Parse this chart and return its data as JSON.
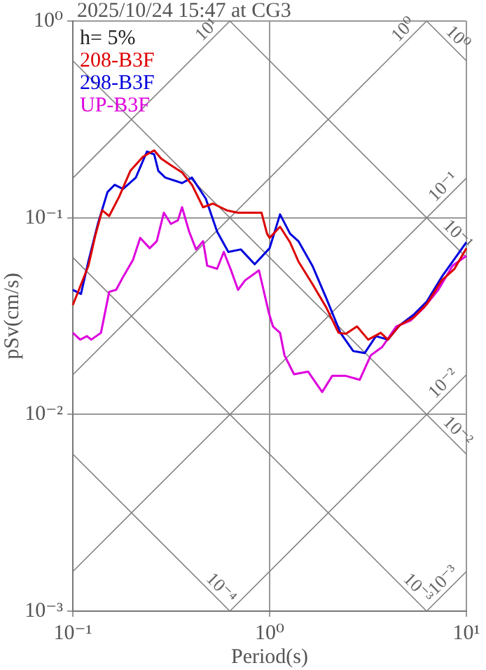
{
  "chart_data": {
    "type": "line",
    "title": "2025/10/24 15:47 at CG3",
    "xlabel": "Period(s)",
    "ylabel": "pSv(cm/s)",
    "log": "xy",
    "xlim": [
      0.1,
      10
    ],
    "ylim": [
      0.001,
      1
    ],
    "xticks": [
      {
        "value": 0.1,
        "label": "10⁻¹"
      },
      {
        "value": 1,
        "label": "10⁰"
      },
      {
        "value": 10,
        "label": "10¹"
      }
    ],
    "yticks": [
      {
        "value": 0.001,
        "label": "10⁻³"
      },
      {
        "value": 0.01,
        "label": "10⁻²"
      },
      {
        "value": 0.1,
        "label": "10⁻¹"
      },
      {
        "value": 1,
        "label": "10⁰"
      }
    ],
    "grid": true,
    "legend": "top left",
    "series": [
      {
        "name": "208-B3F",
        "color": "#dd0000",
        "x": [
          0.1,
          0.12,
          0.13,
          0.141,
          0.153,
          0.172,
          0.196,
          0.227,
          0.259,
          0.281,
          0.315,
          0.359,
          0.403,
          0.459,
          0.515,
          0.606,
          0.691,
          0.774,
          0.91,
          0.97,
          1.0,
          1.13,
          1.27,
          1.4,
          1.65,
          1.94,
          2.24,
          2.44,
          2.78,
          3.17,
          3.67,
          3.99,
          4.58,
          5.37,
          6.29,
          7.49,
          8.7,
          10
        ],
        "values": [
          0.036,
          0.057,
          0.081,
          0.109,
          0.102,
          0.128,
          0.173,
          0.204,
          0.22,
          0.2,
          0.185,
          0.17,
          0.147,
          0.113,
          0.118,
          0.109,
          0.106,
          0.106,
          0.106,
          0.083,
          0.079,
          0.09,
          0.075,
          0.06,
          0.046,
          0.035,
          0.026,
          0.0257,
          0.028,
          0.024,
          0.026,
          0.024,
          0.0284,
          0.031,
          0.0364,
          0.048,
          0.055,
          0.07
        ]
      },
      {
        "name": "298-B3F",
        "color": "#0000dd",
        "x": [
          0.1,
          0.11,
          0.12,
          0.134,
          0.15,
          0.163,
          0.18,
          0.209,
          0.238,
          0.259,
          0.272,
          0.295,
          0.359,
          0.403,
          0.474,
          0.541,
          0.617,
          0.714,
          0.84,
          1.0,
          1.13,
          1.27,
          1.4,
          1.65,
          1.94,
          2.29,
          2.66,
          3.04,
          3.47,
          3.99,
          4.58,
          5.37,
          6.29,
          7.49,
          10
        ],
        "values": [
          0.043,
          0.041,
          0.06,
          0.093,
          0.135,
          0.147,
          0.14,
          0.16,
          0.217,
          0.21,
          0.173,
          0.16,
          0.15,
          0.16,
          0.125,
          0.085,
          0.067,
          0.069,
          0.058,
          0.07,
          0.104,
          0.083,
          0.076,
          0.057,
          0.039,
          0.026,
          0.021,
          0.0205,
          0.025,
          0.024,
          0.0284,
          0.032,
          0.0375,
          0.05,
          0.075
        ]
      },
      {
        "name": "UP-B3F",
        "color": "#dd00dd",
        "x": [
          0.1,
          0.109,
          0.118,
          0.124,
          0.139,
          0.153,
          0.166,
          0.18,
          0.202,
          0.22,
          0.246,
          0.267,
          0.29,
          0.315,
          0.342,
          0.359,
          0.39,
          0.423,
          0.459,
          0.482,
          0.541,
          0.585,
          0.637,
          0.691,
          0.75,
          0.883,
          0.99,
          1.04,
          1.13,
          1.19,
          1.33,
          1.57,
          1.85,
          2.08,
          2.44,
          2.87,
          3.27,
          3.73,
          4.4,
          5.2,
          6.1,
          7.2,
          8.5,
          10
        ],
        "values": [
          0.026,
          0.024,
          0.025,
          0.024,
          0.026,
          0.042,
          0.043,
          0.05,
          0.061,
          0.079,
          0.07,
          0.076,
          0.106,
          0.093,
          0.097,
          0.113,
          0.085,
          0.069,
          0.076,
          0.057,
          0.055,
          0.067,
          0.054,
          0.043,
          0.048,
          0.054,
          0.033,
          0.028,
          0.026,
          0.02,
          0.016,
          0.0165,
          0.013,
          0.0157,
          0.0157,
          0.015,
          0.02,
          0.022,
          0.028,
          0.03,
          0.035,
          0.043,
          0.057,
          0.064
        ]
      },
      {
        "name": "10¹",
        "color": "#808080",
        "x": [
          0.1,
          0.628
        ],
        "values": [
          0.159,
          1
        ]
      },
      {
        "name": "10⁰",
        "color": "#808080",
        "x": [
          0.1,
          6.28
        ],
        "values": [
          0.0159,
          1
        ]
      },
      {
        "name": "10⁻¹",
        "color": "#808080",
        "x": [
          0.1,
          10
        ],
        "values": [
          0.00159,
          0.159
        ]
      },
      {
        "name": "10⁻²",
        "color": "#808080",
        "x": [
          0.628,
          10
        ],
        "values": [
          0.001,
          0.0159
        ]
      },
      {
        "name": "10⁻³",
        "color": "#808080",
        "x": [
          6.28,
          10
        ],
        "values": [
          0.001,
          0.00159
        ]
      },
      {
        "name": "10⁰",
        "color": "#808080",
        "x": [
          6.28,
          10
        ],
        "values": [
          1,
          0.628
        ]
      },
      {
        "name": "10⁻¹",
        "color": "#808080",
        "x": [
          0.628,
          10
        ],
        "values": [
          1,
          0.0628
        ]
      },
      {
        "name": "10⁻²",
        "color": "#808080",
        "x": [
          0.1,
          10
        ],
        "values": [
          0.628,
          0.00628
        ]
      },
      {
        "name": "10⁻³",
        "color": "#808080",
        "x": [
          0.1,
          6.28
        ],
        "values": [
          0.0628,
          0.001
        ]
      },
      {
        "name": "10⁻⁴",
        "color": "#808080",
        "x": [
          0.1,
          0.628
        ],
        "values": [
          0.00628,
          0.001
        ]
      }
    ],
    "annotations": [
      "h= 5%"
    ]
  }
}
